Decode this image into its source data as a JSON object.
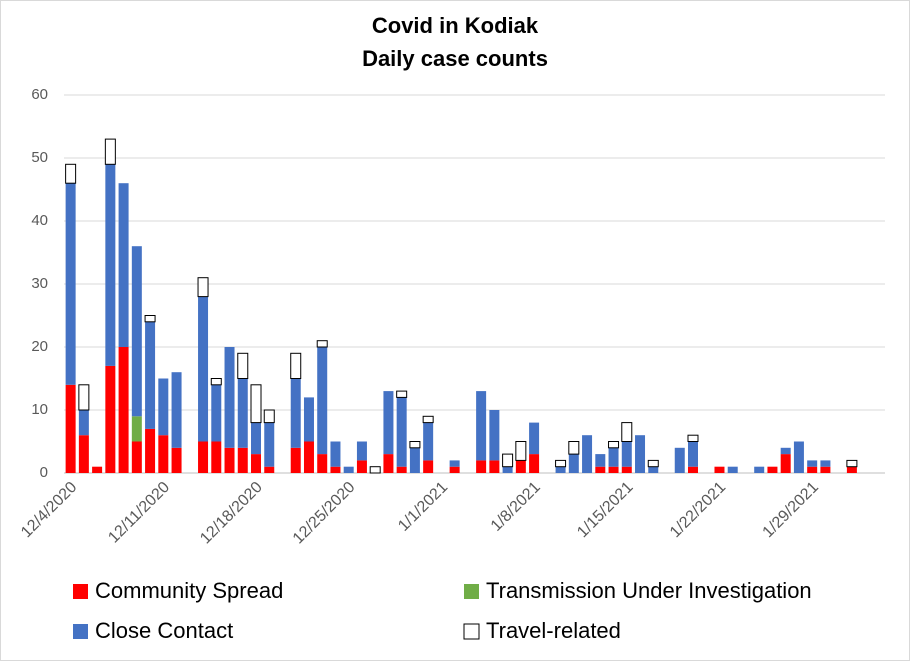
{
  "chart_data": {
    "type": "stacked_bar",
    "title": [
      "Covid in Kodiak",
      "Daily case counts"
    ],
    "categories": [
      "12/4/2020",
      null,
      null,
      null,
      null,
      null,
      null,
      "12/11/2020",
      null,
      null,
      null,
      null,
      null,
      null,
      "12/18/2020",
      null,
      null,
      null,
      null,
      null,
      null,
      "12/25/2020",
      null,
      null,
      null,
      null,
      null,
      null,
      "1/1/2021",
      null,
      null,
      null,
      null,
      null,
      null,
      "1/8/2021",
      null,
      null,
      null,
      null,
      null,
      null,
      "1/15/2021",
      null,
      null,
      null,
      null,
      null,
      null,
      "1/22/2021",
      null,
      null,
      null,
      null,
      null,
      null,
      "1/29/2021",
      null,
      null,
      null,
      null,
      null
    ],
    "series": [
      {
        "name": "Community Spread",
        "color": "#ff0000",
        "values": [
          14,
          6,
          1,
          17,
          20,
          5,
          7,
          6,
          4,
          0,
          5,
          5,
          4,
          4,
          3,
          1,
          0,
          4,
          5,
          3,
          1,
          0,
          2,
          0,
          3,
          1,
          0,
          2,
          0,
          1,
          0,
          2,
          2,
          0,
          2,
          3,
          0,
          0,
          0,
          0,
          1,
          1,
          1,
          0,
          0,
          0,
          0,
          1,
          0,
          1,
          0,
          0,
          0,
          1,
          3,
          0,
          1,
          1,
          0,
          1,
          0,
          0
        ]
      },
      {
        "name": "Transmission Under Investigation",
        "color": "#70ad47",
        "values": [
          0,
          0,
          0,
          0,
          0,
          4,
          0,
          0,
          0,
          0,
          0,
          0,
          0,
          0,
          0,
          0,
          0,
          0,
          0,
          0,
          0,
          0,
          0,
          0,
          0,
          0,
          0,
          0,
          0,
          0,
          0,
          0,
          0,
          0,
          0,
          0,
          0,
          0,
          0,
          0,
          0,
          0,
          0,
          0,
          0,
          0,
          0,
          0,
          0,
          0,
          0,
          0,
          0,
          0,
          0,
          0,
          0,
          0,
          0,
          0,
          0,
          0
        ]
      },
      {
        "name": "Close Contact",
        "color": "#4472c4",
        "values": [
          32,
          4,
          0,
          32,
          26,
          27,
          17,
          9,
          12,
          0,
          23,
          9,
          16,
          11,
          5,
          7,
          0,
          11,
          7,
          17,
          4,
          1,
          3,
          0,
          10,
          11,
          4,
          6,
          0,
          1,
          0,
          11,
          8,
          1,
          0,
          5,
          0,
          1,
          3,
          6,
          2,
          3,
          4,
          6,
          1,
          0,
          4,
          4,
          0,
          0,
          1,
          0,
          1,
          0,
          1,
          5,
          1,
          1,
          0,
          0,
          0,
          0
        ]
      },
      {
        "name": "Travel-related",
        "color": "#ffffff",
        "values": [
          3,
          4,
          0,
          4,
          0,
          0,
          1,
          0,
          0,
          0,
          3,
          1,
          0,
          4,
          6,
          2,
          0,
          4,
          0,
          1,
          0,
          0,
          0,
          1,
          0,
          1,
          1,
          1,
          0,
          0,
          0,
          0,
          0,
          2,
          3,
          0,
          0,
          1,
          2,
          0,
          0,
          1,
          3,
          0,
          1,
          0,
          0,
          1,
          0,
          0,
          0,
          0,
          0,
          0,
          0,
          0,
          0,
          0,
          0,
          1,
          0,
          0
        ]
      }
    ],
    "ylim": [
      0,
      60
    ],
    "yticks": [
      0,
      10,
      20,
      30,
      40,
      50,
      60
    ],
    "grid": true,
    "legend": "bottom"
  }
}
